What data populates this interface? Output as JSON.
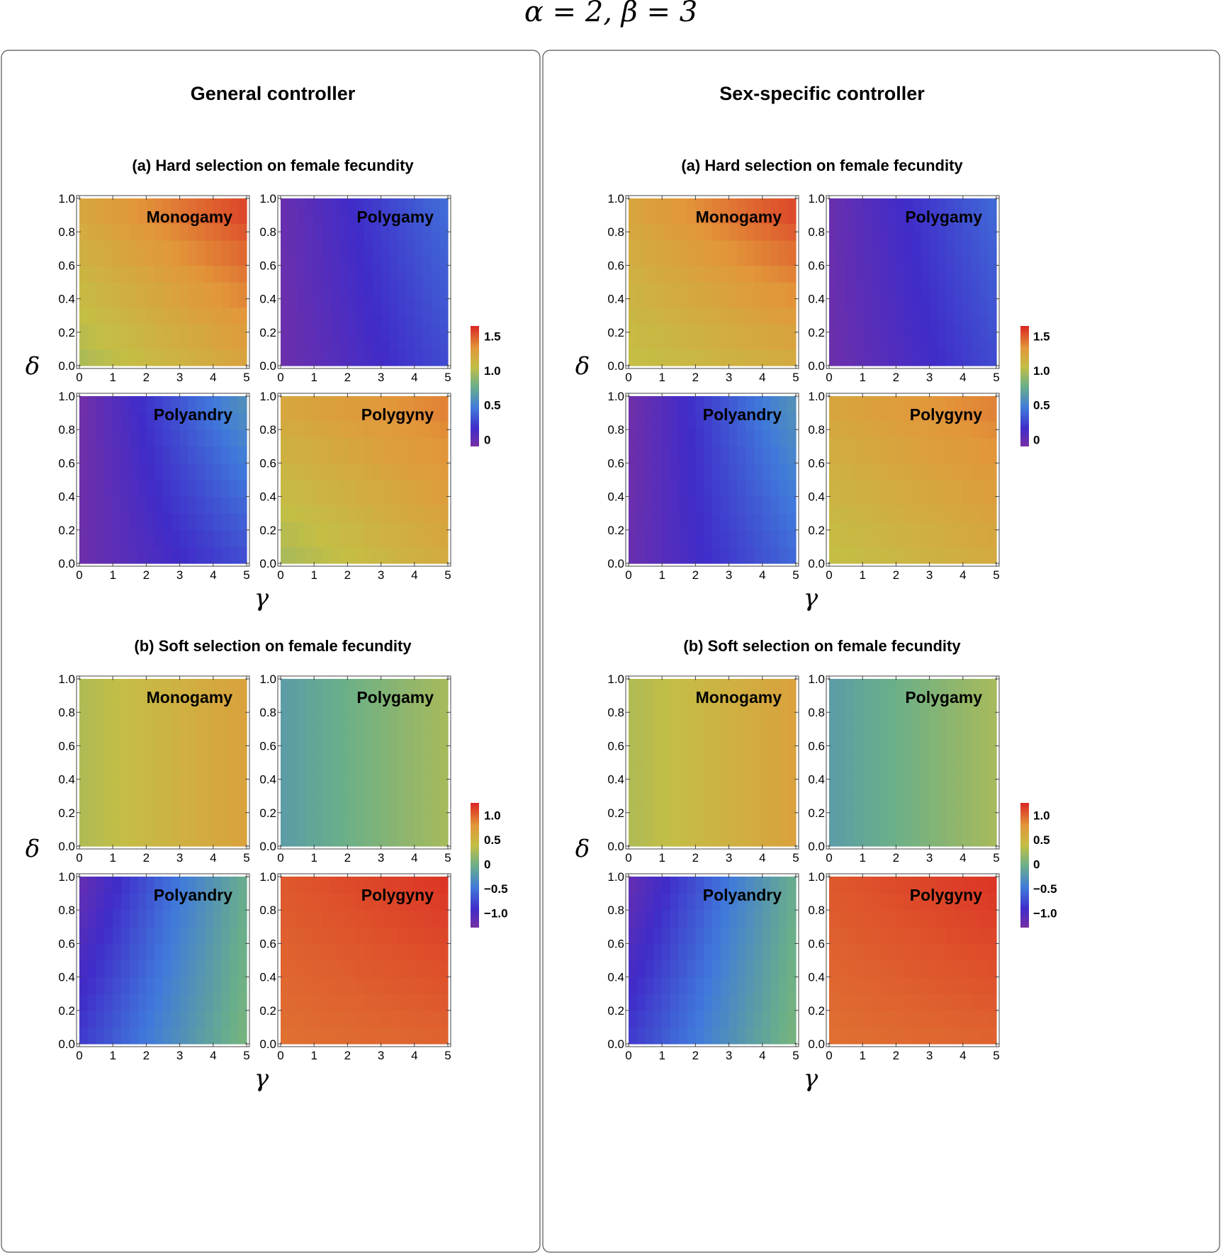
{
  "figure_title": "α = 2, β = 3",
  "chart_data": {
    "type": "heatmap",
    "title": "α = 2, β = 3",
    "colorbars": {
      "a": {
        "range": [
          -0.1,
          1.65
        ],
        "ticks": [
          "0",
          "0.5",
          "1.0",
          "1.5"
        ],
        "tick_values": [
          0,
          0.5,
          1.0,
          1.5
        ]
      },
      "b": {
        "range": [
          -1.3,
          1.25
        ],
        "ticks": [
          "−1.0",
          "−0.5",
          "0",
          "0.5",
          "1.0"
        ],
        "tick_values": [
          -1.0,
          -0.5,
          0,
          0.5,
          1.0
        ]
      }
    },
    "x_axis": {
      "label": "γ",
      "range": [
        0,
        5
      ],
      "ticks": [
        "0",
        "1",
        "2",
        "3",
        "4",
        "5"
      ]
    },
    "y_axis": {
      "label": "δ",
      "range": [
        0,
        1
      ],
      "ticks": [
        "0.0",
        "0.2",
        "0.4",
        "0.6",
        "0.8",
        "1.0"
      ]
    },
    "columns": [
      {
        "title": "General controller",
        "sections": [
          {
            "title": "(a) Hard selection on female fecundity",
            "scale": "a",
            "panels": [
              {
                "label": "Monogamy",
                "z00": 0.98,
                "z10": 1.25,
                "z01": 1.25,
                "z11": 1.6,
                "steps": 8
              },
              {
                "label": "Polygamy",
                "z00": -0.05,
                "z10": 0.28,
                "z01": -0.03,
                "z11": 0.42,
                "steps": 0
              },
              {
                "label": "Polyandry",
                "z00": -0.05,
                "z10": 0.3,
                "z01": -0.08,
                "z11": 0.62,
                "steps": 10
              },
              {
                "label": "Polygyny",
                "z00": 0.97,
                "z10": 1.2,
                "z01": 1.25,
                "z11": 1.42,
                "steps": 8
              }
            ]
          },
          {
            "title": "(b) Soft selection on female fecundity",
            "scale": "b",
            "panels": [
              {
                "label": "Monogamy",
                "z00": 0.28,
                "z10": 0.68,
                "z01": 0.28,
                "z11": 0.68,
                "steps": 0
              },
              {
                "label": "Polygamy",
                "z00": -0.2,
                "z10": 0.25,
                "z01": -0.2,
                "z11": 0.25,
                "steps": 0
              },
              {
                "label": "Polyandry",
                "z00": -0.85,
                "z10": 0.05,
                "z01": -1.2,
                "z11": -0.05,
                "steps": 10
              },
              {
                "label": "Polygyny",
                "z00": 0.95,
                "z10": 1.0,
                "z01": 1.05,
                "z11": 1.2,
                "steps": 10
              }
            ]
          }
        ]
      },
      {
        "title": "Sex-specific controller",
        "sections": [
          {
            "title": "(a) Hard selection on female fecundity",
            "scale": "a",
            "panels": [
              {
                "label": "Monogamy",
                "z00": 1.05,
                "z10": 1.2,
                "z01": 1.25,
                "z11": 1.6,
                "steps": 8
              },
              {
                "label": "Polygamy",
                "z00": -0.05,
                "z10": 0.28,
                "z01": -0.03,
                "z11": 0.4,
                "steps": 0
              },
              {
                "label": "Polyandry",
                "z00": -0.03,
                "z10": 0.4,
                "z01": -0.08,
                "z11": 0.62,
                "steps": 10
              },
              {
                "label": "Polygyny",
                "z00": 1.05,
                "z10": 1.2,
                "z01": 1.25,
                "z11": 1.42,
                "steps": 8
              }
            ]
          },
          {
            "title": "(b) Soft selection on female fecundity",
            "scale": "b",
            "panels": [
              {
                "label": "Monogamy",
                "z00": 0.28,
                "z10": 0.68,
                "z01": 0.28,
                "z11": 0.68,
                "steps": 0
              },
              {
                "label": "Polygamy",
                "z00": -0.2,
                "z10": 0.25,
                "z01": -0.2,
                "z11": 0.25,
                "steps": 0
              },
              {
                "label": "Polyandry",
                "z00": -0.85,
                "z10": 0.05,
                "z01": -1.2,
                "z11": -0.05,
                "steps": 10
              },
              {
                "label": "Polygyny",
                "z00": 0.95,
                "z10": 1.0,
                "z01": 1.05,
                "z11": 1.2,
                "steps": 10
              }
            ]
          }
        ]
      }
    ]
  }
}
